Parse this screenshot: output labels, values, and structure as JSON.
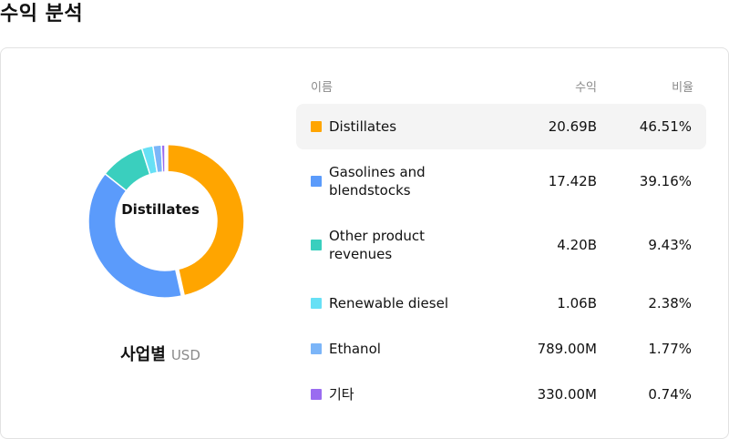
{
  "page": {
    "title": "수익 분석"
  },
  "table": {
    "headers": {
      "name": "이름",
      "revenue": "수익",
      "share": "비율"
    }
  },
  "chart_caption": {
    "main": "사업별",
    "currency": "USD"
  },
  "chart_data": {
    "type": "pie",
    "center_label": "Distillates",
    "selected_index": 0,
    "categories": [
      "Distillates",
      "Gasolines and blendstocks",
      "Other product revenues",
      "Renewable diesel",
      "Ethanol",
      "기타"
    ],
    "revenue_labels": [
      "20.69B",
      "17.42B",
      "4.20B",
      "1.06B",
      "789.00M",
      "330.00M"
    ],
    "percent_labels": [
      "46.51%",
      "39.16%",
      "9.43%",
      "2.38%",
      "1.77%",
      "0.74%"
    ],
    "values": [
      46.51,
      39.16,
      9.43,
      2.38,
      1.77,
      0.74
    ],
    "colors": [
      "#ffa500",
      "#5b9bfb",
      "#3acfbe",
      "#67e0f5",
      "#7bb5f8",
      "#9a6cf0"
    ]
  }
}
